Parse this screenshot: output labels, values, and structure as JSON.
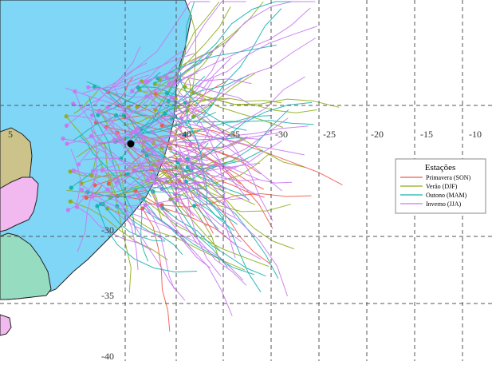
{
  "map": {
    "longitude_labels": [
      "-35",
      "-30",
      "-25",
      "-20",
      "-15",
      "-10",
      "-40"
    ],
    "latitude_labels": [
      "-30",
      "-35",
      "-40"
    ],
    "partial_label": "5",
    "center_marker": "storm-origin-point"
  },
  "legend": {
    "title": "Estações",
    "items": [
      {
        "label": "Primavera (SON)",
        "color": "#f05a4e"
      },
      {
        "label": "Verão (DJF)",
        "color": "#8fae1b"
      },
      {
        "label": "Outono (MAM)",
        "color": "#16b3b0"
      },
      {
        "label": "Inverno (JJA)",
        "color": "#c779ef"
      }
    ]
  },
  "colors": {
    "ocean": "#ffffff",
    "land_blue": "#7fd6f6",
    "land_khaki": "#cbc38a",
    "land_pink": "#f2b8f0",
    "land_green": "#96dcc0",
    "grid": "#555555"
  }
}
